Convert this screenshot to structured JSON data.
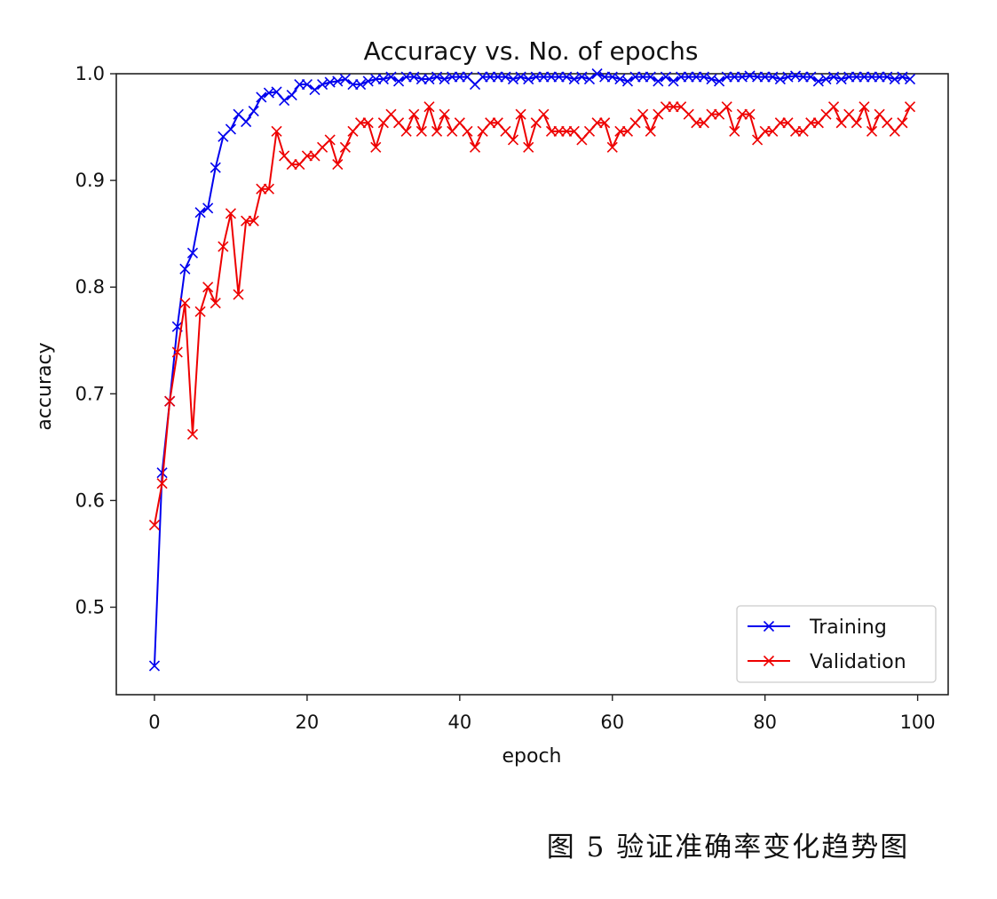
{
  "chart_data": {
    "type": "line",
    "title": "Accuracy vs. No. of epochs",
    "xlabel": "epoch",
    "ylabel": "accuracy",
    "xlim": [
      -5,
      104
    ],
    "ylim": [
      0.418,
      1.0
    ],
    "x_ticks": [
      "0",
      "20",
      "40",
      "60",
      "80",
      "100"
    ],
    "y_ticks": [
      "0.5",
      "0.6",
      "0.7",
      "0.8",
      "0.9",
      "1.0"
    ],
    "grid": false,
    "legend": "bottom-right",
    "marker": "x",
    "series": [
      {
        "name": "Training",
        "color": "#0000ee",
        "values": [
          0.445,
          0.626,
          0.693,
          0.763,
          0.817,
          0.832,
          0.87,
          0.874,
          0.912,
          0.941,
          0.948,
          0.962,
          0.955,
          0.965,
          0.978,
          0.982,
          0.983,
          0.975,
          0.98,
          0.99,
          0.99,
          0.985,
          0.99,
          0.992,
          0.993,
          0.995,
          0.99,
          0.99,
          0.993,
          0.995,
          0.995,
          0.997,
          0.993,
          0.997,
          0.997,
          0.995,
          0.995,
          0.997,
          0.995,
          0.997,
          0.997,
          0.997,
          0.99,
          0.997,
          0.997,
          0.997,
          0.997,
          0.995,
          0.997,
          0.995,
          0.997,
          0.997,
          0.997,
          0.997,
          0.997,
          0.995,
          0.997,
          0.995,
          1.0,
          0.997,
          0.997,
          0.995,
          0.993,
          0.997,
          0.997,
          0.997,
          0.993,
          0.997,
          0.993,
          0.997,
          0.997,
          0.997,
          0.997,
          0.995,
          0.993,
          0.997,
          0.997,
          0.997,
          0.998,
          0.997,
          0.997,
          0.997,
          0.995,
          0.997,
          0.998,
          0.997,
          0.997,
          0.993,
          0.995,
          0.997,
          0.995,
          0.997,
          0.997,
          0.997,
          0.997,
          0.997,
          0.997,
          0.995,
          0.997,
          0.995
        ]
      },
      {
        "name": "Validation",
        "color": "#ee0000",
        "values": [
          0.577,
          0.616,
          0.693,
          0.739,
          0.785,
          0.662,
          0.777,
          0.8,
          0.785,
          0.838,
          0.869,
          0.793,
          0.862,
          0.862,
          0.892,
          0.892,
          0.946,
          0.923,
          0.915,
          0.915,
          0.923,
          0.923,
          0.931,
          0.938,
          0.915,
          0.931,
          0.946,
          0.954,
          0.954,
          0.931,
          0.954,
          0.962,
          0.954,
          0.946,
          0.962,
          0.946,
          0.969,
          0.946,
          0.962,
          0.946,
          0.954,
          0.946,
          0.931,
          0.946,
          0.954,
          0.954,
          0.946,
          0.938,
          0.962,
          0.931,
          0.954,
          0.962,
          0.946,
          0.946,
          0.946,
          0.946,
          0.938,
          0.946,
          0.954,
          0.954,
          0.931,
          0.946,
          0.946,
          0.954,
          0.962,
          0.946,
          0.962,
          0.969,
          0.969,
          0.969,
          0.962,
          0.954,
          0.954,
          0.962,
          0.962,
          0.969,
          0.946,
          0.962,
          0.962,
          0.938,
          0.946,
          0.946,
          0.954,
          0.954,
          0.946,
          0.946,
          0.954,
          0.954,
          0.962,
          0.969,
          0.954,
          0.962,
          0.954,
          0.969,
          0.946,
          0.962,
          0.954,
          0.946,
          0.954,
          0.969
        ]
      }
    ]
  },
  "caption": "图 5 验证准确率变化趋势图"
}
